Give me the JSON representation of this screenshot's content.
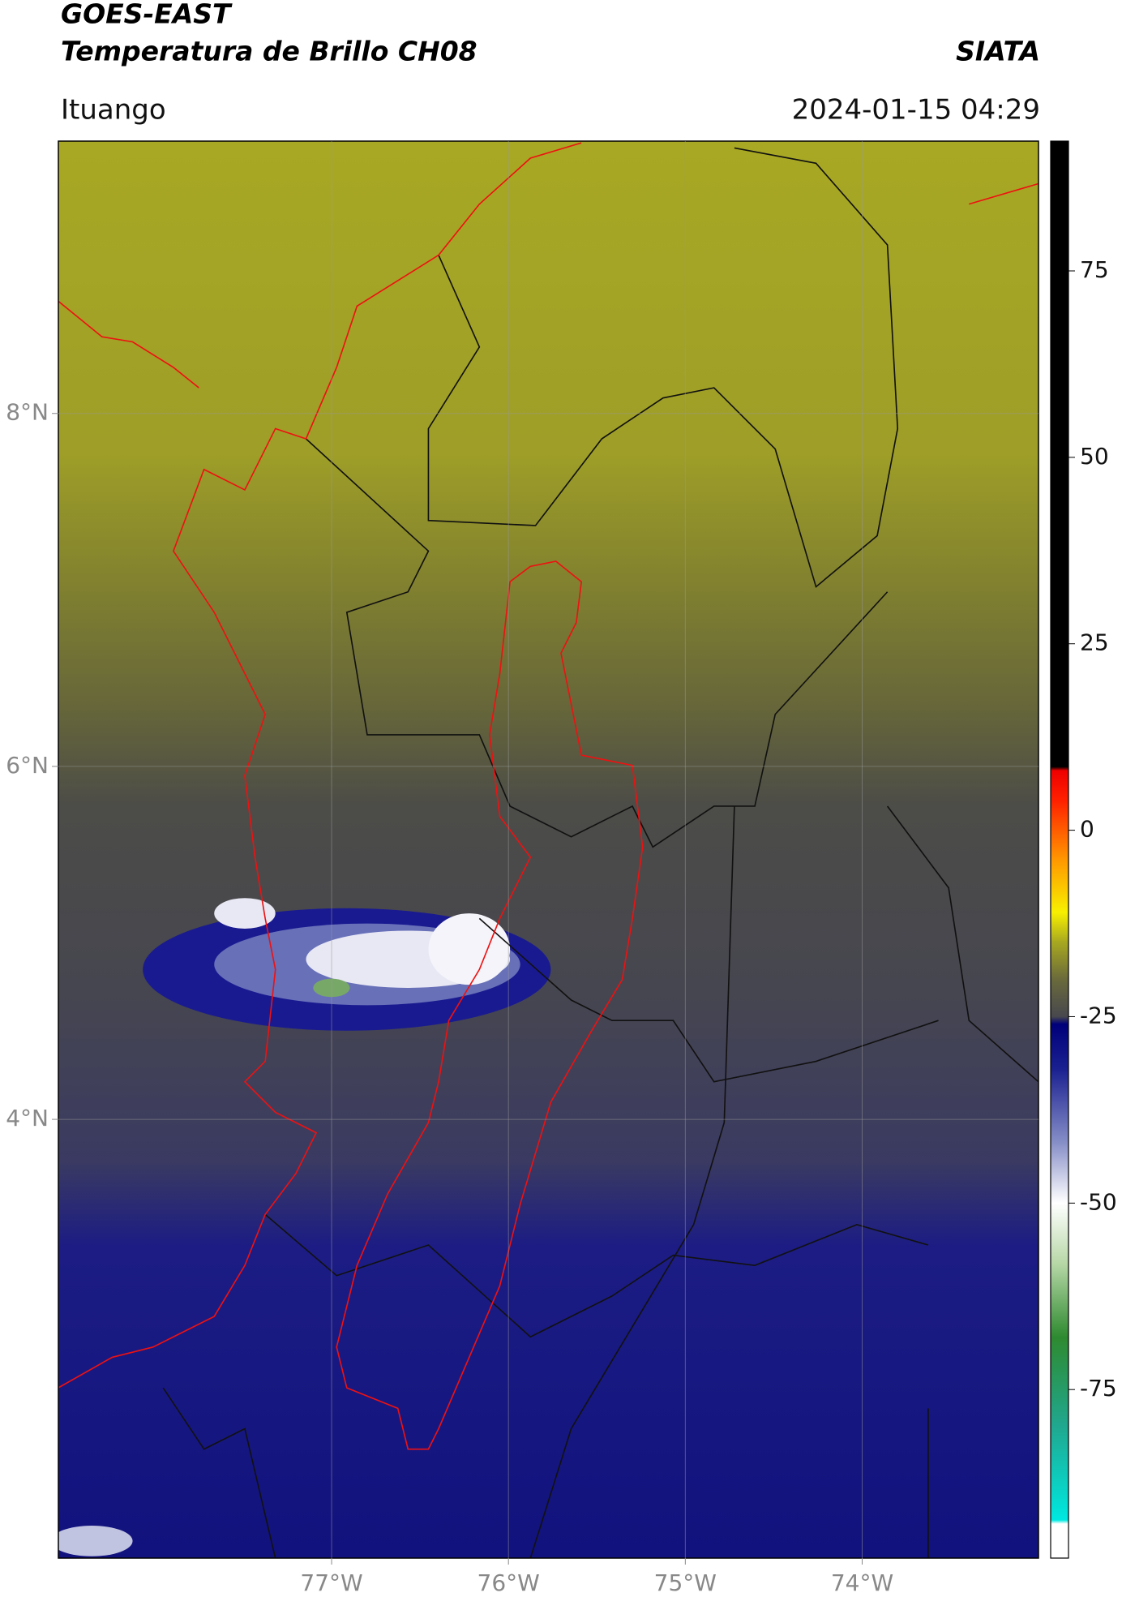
{
  "header": {
    "title": "GOES-EAST",
    "subtitle": "Temperatura de Brillo CH08",
    "source": "SIATA",
    "location": "Ituango",
    "datetime": "2024-01-15 04:29"
  },
  "map": {
    "xlim": [
      -78.545,
      -73.003
    ],
    "ylim": [
      1.514,
      9.543
    ],
    "xticks": [
      {
        "value": -77,
        "label": "77°W"
      },
      {
        "value": -76,
        "label": "76°W"
      },
      {
        "value": -75,
        "label": "75°W"
      },
      {
        "value": -74,
        "label": "74°W"
      }
    ],
    "yticks": [
      {
        "value": 4,
        "label": "4°N"
      },
      {
        "value": 6,
        "label": "6°N"
      },
      {
        "value": 8,
        "label": "8°N"
      }
    ],
    "grid": true
  },
  "colorbar": {
    "lim": [
      -97.6,
      92.4
    ],
    "ticks": [
      -75,
      -50,
      -25,
      0,
      25,
      50,
      75
    ],
    "stops": [
      {
        "value": -97.6,
        "color": "#ffffff"
      },
      {
        "value": -93,
        "color": "#ffffff"
      },
      {
        "value": -92.5,
        "color": "#00e8e0"
      },
      {
        "value": -80,
        "color": "#20a890"
      },
      {
        "value": -68,
        "color": "#2e8a30"
      },
      {
        "value": -58,
        "color": "#b8d8a8"
      },
      {
        "value": -50,
        "color": "#ffffff"
      },
      {
        "value": -42,
        "color": "#8890c8"
      },
      {
        "value": -32,
        "color": "#1a2090"
      },
      {
        "value": -26,
        "color": "#00007a"
      },
      {
        "value": -25,
        "color": "#48484e"
      },
      {
        "value": -20,
        "color": "#6a6a3c"
      },
      {
        "value": -15,
        "color": "#a8a820"
      },
      {
        "value": -11,
        "color": "#f8f000"
      },
      {
        "value": -4,
        "color": "#ff9800"
      },
      {
        "value": 4,
        "color": "#ff2000"
      },
      {
        "value": 8,
        "color": "#ee0000"
      },
      {
        "value": 8.5,
        "color": "#000000"
      },
      {
        "value": 92.4,
        "color": "#000000"
      }
    ]
  }
}
